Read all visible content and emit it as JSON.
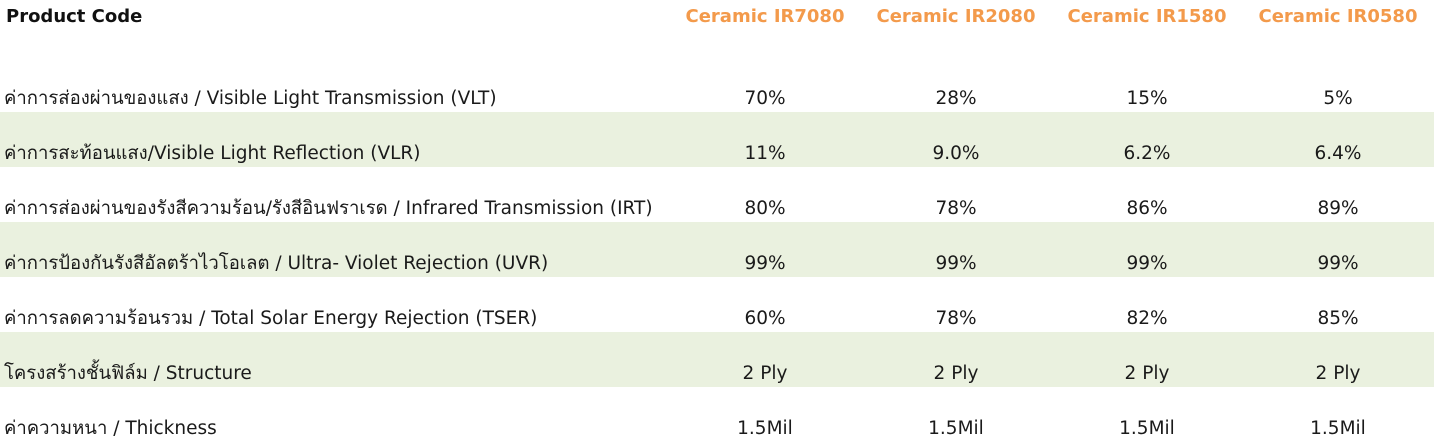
{
  "header": {
    "label": "Product Code",
    "products": [
      "Ceramic IR7080",
      "Ceramic IR2080",
      "Ceramic IR1580",
      "Ceramic IR0580"
    ]
  },
  "rows": [
    {
      "label": "ค่าการส่องผ่านของแสง / Visible Light Transmission (VLT)",
      "values": [
        "70%",
        "28%",
        "15%",
        "5%"
      ],
      "shaded": false
    },
    {
      "label": "ค่าการสะท้อนแสง/Visible Light Reflection (VLR)",
      "values": [
        "11%",
        "9.0%",
        "6.2%",
        "6.4%"
      ],
      "shaded": true
    },
    {
      "label": "ค่าการส่องผ่านของรังสีความร้อน/รังสีอินฟราเรด / Infrared Transmission (IRT)",
      "values": [
        "80%",
        "78%",
        "86%",
        "89%"
      ],
      "shaded": false
    },
    {
      "label": "ค่าการป้องกันรังสีอัลตร้าไวโอเลต / Ultra- Violet Rejection (UVR)",
      "values": [
        "99%",
        "99%",
        "99%",
        "99%"
      ],
      "shaded": true
    },
    {
      "label": "ค่าการลดความร้อนรวม / Total Solar Energy Rejection (TSER)",
      "values": [
        "60%",
        "78%",
        "82%",
        "85%"
      ],
      "shaded": false
    },
    {
      "label": "โครงสร้างชั้นฟิล์ม / Structure",
      "values": [
        "2 Ply",
        "2 Ply",
        "2 Ply",
        "2 Ply"
      ],
      "shaded": true
    },
    {
      "label": "ค่าความหนา / Thickness",
      "values": [
        "1.5Mil",
        "1.5Mil",
        "1.5Mil",
        "1.5Mil"
      ],
      "shaded": false
    }
  ],
  "colors": {
    "product_header": "#f39a4b",
    "row_shade": "#eaf1df"
  }
}
